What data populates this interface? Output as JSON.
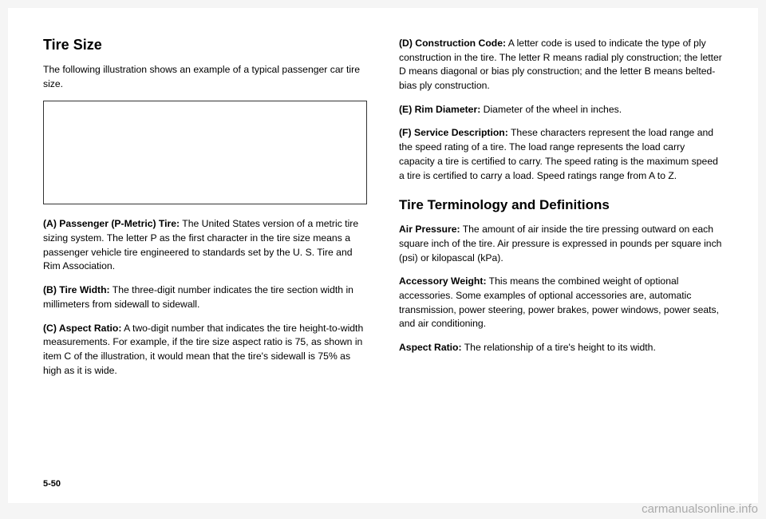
{
  "left": {
    "title": "Tire Size",
    "intro": "The following illustration shows an example of a typical passenger car tire size.",
    "a_lead": "(A) Passenger (P-Metric) Tire:",
    "a_body": " The United States version of a metric tire sizing system. The letter P as the first character in the tire size means a passenger vehicle tire engineered to standards set by the U. S. Tire and Rim Association.",
    "b_lead": "(B) Tire Width:",
    "b_body": " The three-digit number indicates the tire section width in millimeters from sidewall to sidewall.",
    "c_lead": "(C) Aspect Ratio:",
    "c_body": " A two-digit number that indicates the tire height-to-width measurements. For example, if the tire size aspect ratio is 75, as shown in item C of the illustration, it would mean that the tire's sidewall is 75% as high as it is wide."
  },
  "right": {
    "d_lead": "(D) Construction Code:",
    "d_body": " A letter code is used to indicate the type of ply construction in the tire. The letter R means radial ply construction; the letter D means diagonal or bias ply construction; and the letter B means belted-bias ply construction.",
    "e_lead": "(E) Rim Diameter:",
    "e_body": " Diameter of the wheel in inches.",
    "f_lead": "(F) Service Description:",
    "f_body": " These characters represent the load range and the speed rating of a tire. The load range represents the load carry capacity a tire is certified to carry. The speed rating is the maximum speed a tire is certified to carry a load. Speed ratings range from A to Z.",
    "terms_title": "Tire Terminology and Definitions",
    "air_lead": "Air Pressure:",
    "air_body": " The amount of air inside the tire pressing outward on each square inch of the tire. Air pressure is expressed in pounds per square inch (psi) or kilopascal (kPa).",
    "acc_lead": "Accessory Weight:",
    "acc_body": " This means the combined weight of optional accessories. Some examples of optional accessories are, automatic transmission, power steering, power brakes, power windows, power seats, and air conditioning.",
    "asp_lead": "Aspect Ratio:",
    "asp_body": " The relationship of a tire's height to its width."
  },
  "page_number": "5-50",
  "watermark": "carmanualsonline.info"
}
